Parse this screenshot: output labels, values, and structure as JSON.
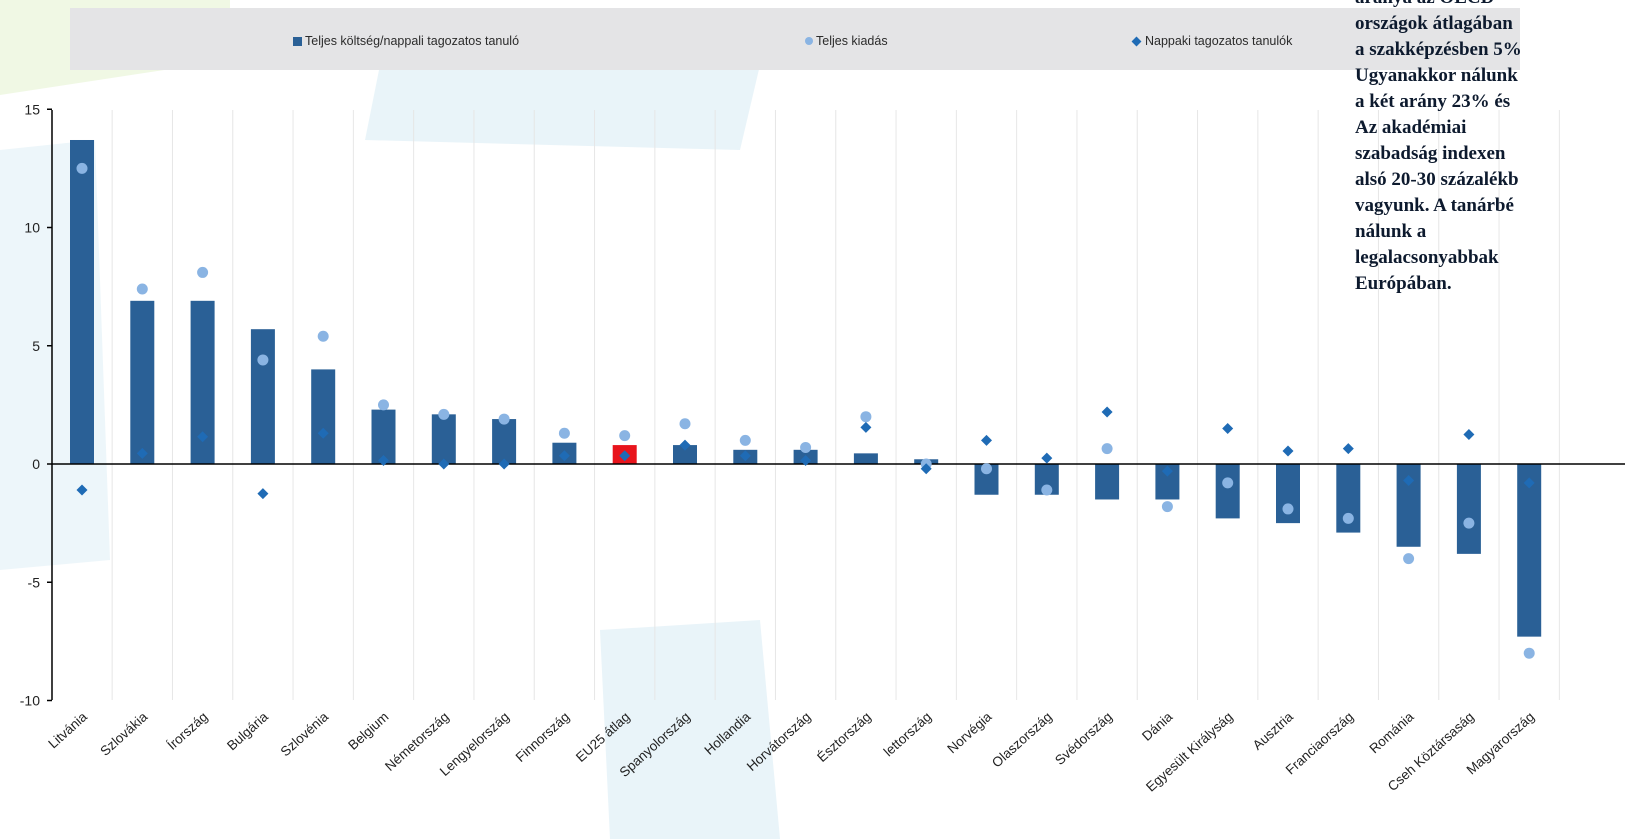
{
  "legend": {
    "bar": "Teljes költség/nappali tagozatos tanuló",
    "dot": "Teljes kiadás",
    "diamond": "Nappaki tagozatos tanulók"
  },
  "note": {
    "lines": [
      "aránya az OECD",
      "országok átlagában",
      "a szakképzésben 5%",
      "Ugyanakkor nálunk",
      "a két arány 23% és",
      "Az akadémiai",
      "szabadság indexen",
      "alsó 20-30 százalékb",
      "vagyunk. A tanárbé",
      "nálunk a",
      "legalacsonyabbak",
      "Európában."
    ]
  },
  "colors": {
    "bar": "#2a6096",
    "highlight": "#e8141c",
    "dot": "#8ab4e3",
    "diamond": "#1f6bb5",
    "legend_bg": "#e4e4e6"
  },
  "chart_data": {
    "type": "bar",
    "categories": [
      "Litvánia",
      "Szlovákia",
      "Írország",
      "Bulgária",
      "Szlovénia",
      "Belgium",
      "Németország",
      "Lengyelország",
      "Finnország",
      "EU25 átlag",
      "Spanyolország",
      "Hollandia",
      "Horvátország",
      "Észtország",
      "lettország",
      "Norvégia",
      "Olaszország",
      "Svédország",
      "Dánia",
      "Egyesült Királyság",
      "Ausztria",
      "Franciaország",
      "Románia",
      "Cseh Köztársaság",
      "Magyarország"
    ],
    "highlight_category": "EU25 átlag",
    "series": [
      {
        "name": "Teljes költség/nappali tagozatos tanuló",
        "type": "bar",
        "values": [
          13.7,
          6.9,
          6.9,
          5.7,
          4.0,
          2.3,
          2.1,
          1.9,
          0.9,
          0.8,
          0.8,
          0.6,
          0.6,
          0.45,
          0.2,
          -1.3,
          -1.3,
          -1.5,
          -1.5,
          -2.3,
          -2.5,
          -2.9,
          -3.5,
          -3.8,
          -7.3
        ]
      },
      {
        "name": "Teljes kiadás",
        "type": "scatter",
        "values": [
          12.5,
          7.4,
          8.1,
          4.4,
          5.4,
          2.5,
          2.1,
          1.9,
          1.3,
          1.2,
          1.7,
          1.0,
          0.7,
          2.0,
          0.0,
          -0.2,
          -1.1,
          0.65,
          -1.8,
          -0.8,
          -1.9,
          -2.3,
          -4.0,
          -2.5,
          -8.0
        ]
      },
      {
        "name": "Nappaki tagozatos tanulók",
        "type": "scatter",
        "values": [
          -1.1,
          0.45,
          1.15,
          -1.25,
          1.3,
          0.15,
          0.0,
          0.0,
          0.35,
          0.35,
          0.8,
          0.35,
          0.15,
          1.55,
          -0.2,
          1.0,
          0.25,
          2.2,
          -0.3,
          1.5,
          0.55,
          0.65,
          -0.7,
          1.25,
          -0.8
        ]
      }
    ],
    "y_ticks": [
      15,
      10,
      5,
      0,
      -5,
      -10
    ],
    "ylim": [
      -10,
      15
    ],
    "legend_position": "top"
  }
}
